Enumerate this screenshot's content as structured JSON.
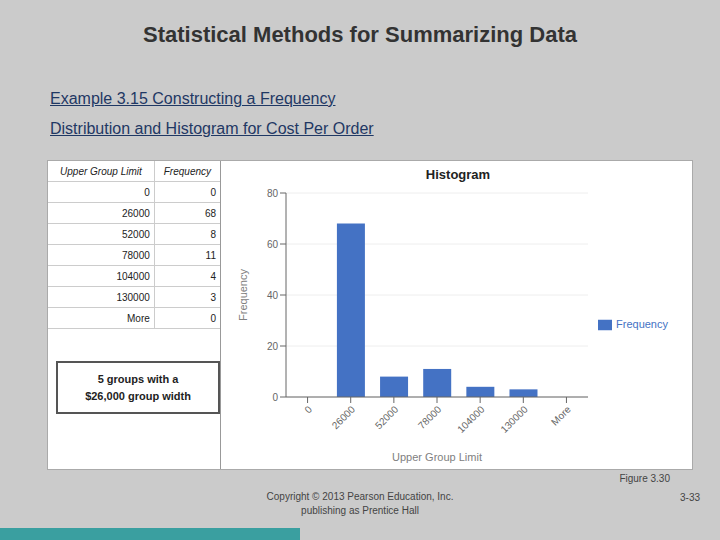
{
  "chart_data": {
    "type": "bar",
    "title": "Histogram",
    "x_label": "Upper Group Limit",
    "y_label": "Frequency",
    "categories": [
      "0",
      "26000",
      "52000",
      "78000",
      "104000",
      "130000",
      "More"
    ],
    "series": [
      {
        "name": "Frequency",
        "color": "#4472c4",
        "values": [
          0,
          68,
          8,
          11,
          4,
          3,
          0
        ]
      }
    ],
    "ylim": [
      0,
      80
    ],
    "yticks": [
      0,
      20,
      40,
      60,
      80
    ],
    "grid": true,
    "legend": "right",
    "annotations": [
      "Statistical Methods for Summarizing Data",
      "Example 3.15  Constructing a Frequency",
      "Distribution and Histogram for Cost Per Order",
      "5 groups with a\n$26,000 group width",
      "Figure 3.30",
      "Copyright © 2013 Pearson Education, Inc.\npublishing as Prentice Hall",
      "3-33"
    ]
  }
}
